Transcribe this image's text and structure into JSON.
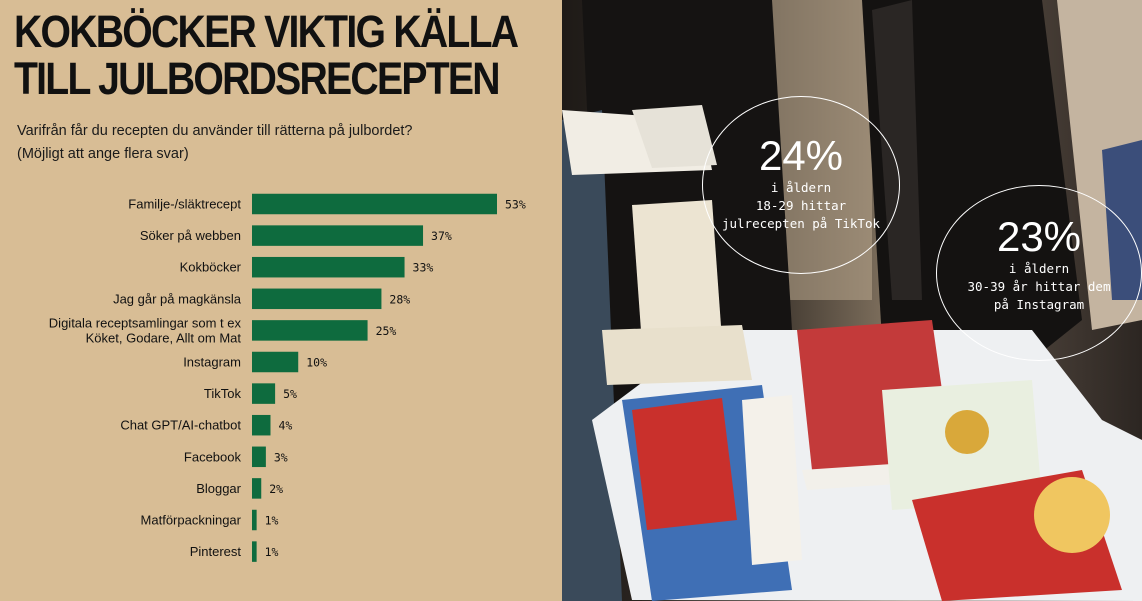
{
  "infographic": {
    "title_line1": "KOKBÖCKER VIKTIG KÄLLA",
    "title_line2": "TILL JULBORDSRECEPTEN",
    "question_line1": "Varifrån får du recepten du använder till rätterna på julbordet?",
    "question_line2": "(Möjligt att ange flera svar)"
  },
  "stats": [
    {
      "value": "24%",
      "line1": "i åldern",
      "line2": "18-29 hittar",
      "line3": "julrecepten på TikTok"
    },
    {
      "value": "23%",
      "line1": "i åldern",
      "line2": "30-39 år hittar dem",
      "line3": "på Instagram"
    }
  ],
  "colors": {
    "bar": "#0e6b3e",
    "background": "#d8bd95",
    "text": "#111111"
  },
  "chart_data": {
    "type": "bar",
    "orientation": "horizontal",
    "unit": "%",
    "xlim": [
      0,
      53
    ],
    "categories": [
      [
        "Familje-/släktrecept"
      ],
      [
        "Söker på webben"
      ],
      [
        "Kokböcker"
      ],
      [
        "Jag går på magkänsla"
      ],
      [
        "Digitala receptsamlingar som t ex",
        "Köket, Godare, Allt om Mat"
      ],
      [
        "Instagram"
      ],
      [
        "TikTok"
      ],
      [
        "Chat GPT/AI-chatbot"
      ],
      [
        "Facebook"
      ],
      [
        "Bloggar"
      ],
      [
        "Matförpackningar"
      ],
      [
        "Pinterest"
      ]
    ],
    "values": [
      53,
      37,
      33,
      28,
      25,
      10,
      5,
      4,
      3,
      2,
      1,
      1
    ],
    "value_labels": [
      "53%",
      "37%",
      "33%",
      "28%",
      "25%",
      "10%",
      "5%",
      "4%",
      "3%",
      "2%",
      "1%",
      "1%"
    ]
  }
}
